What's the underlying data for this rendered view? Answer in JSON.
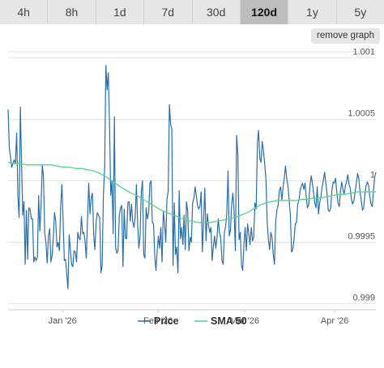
{
  "timeframes": [
    "4h",
    "8h",
    "1d",
    "7d",
    "30d",
    "120d",
    "1y",
    "5y"
  ],
  "active_timeframe": "120d",
  "remove_graph_label": "remove graph",
  "colors": {
    "price": "#2b6fa6",
    "sma": "#52d689",
    "grid": "#e5e5e5",
    "active_tab": "#bdbdbd",
    "tab": "#e6e6e6"
  },
  "chart_data": {
    "type": "line",
    "xlabel": "",
    "ylabel": "",
    "x_ticks": [
      "Jan '26",
      "Feb '26",
      "Mar '26",
      "Apr '26"
    ],
    "x_range": [
      "Dec 12",
      "Apr 10"
    ],
    "y_ticks": [
      {
        "value": 0.999,
        "label": "0.999"
      },
      {
        "value": 0.9995,
        "label": "0.9995"
      },
      {
        "value": 1.0,
        "label": "1"
      },
      {
        "value": 1.0005,
        "label": "1.0005"
      },
      {
        "value": 1.001,
        "label": "1.001"
      }
    ],
    "ylim": [
      0.99895,
      1.00105
    ],
    "grid": true,
    "legend_position": "bottom-center",
    "series": [
      {
        "name": "Price",
        "values": [
          1.00058,
          1.00027,
          1.00019,
          1.00011,
          1.00014,
          1.00017,
          1.00014,
          1.00039,
          0.99987,
          0.9997,
          1.0006,
          1.00015,
          0.99972,
          0.99983,
          0.99932,
          0.99976,
          0.99936,
          0.99978,
          0.99977,
          0.99969,
          0.99969,
          0.99934,
          0.99938,
          0.99935,
          0.99938,
          0.99988,
          0.99959,
          0.99981,
          1.00013,
          1.00003,
          0.99958,
          0.99949,
          0.99933,
          0.99955,
          0.99961,
          0.99934,
          0.99939,
          0.99954,
          0.99974,
          0.99967,
          0.99946,
          0.9995,
          0.99943,
          0.99979,
          0.99997,
          0.99968,
          0.99935,
          0.99936,
          0.99924,
          0.99912,
          0.99956,
          0.99944,
          0.99932,
          0.9993,
          0.99943,
          0.99942,
          0.99934,
          0.99958,
          0.99953,
          0.99952,
          0.99971,
          0.99957,
          0.99958,
          0.99951,
          0.99937,
          0.99968,
          0.99998,
          0.99973,
          0.99986,
          0.9999,
          0.99957,
          0.99944,
          0.99966,
          0.99974,
          0.99972,
          0.9997,
          0.99925,
          0.99931,
          0.99988,
          1.00011,
          1.00094,
          1.00074,
          1.00088,
          1.00045,
          0.99988,
          1.0,
          0.99957,
          1.00052,
          0.99946,
          0.99941,
          0.99943,
          0.99972,
          0.99978,
          0.9998,
          0.9993,
          0.99977,
          0.99953,
          0.99953,
          0.99982,
          0.99983,
          0.99967,
          0.99981,
          0.99967,
          0.99962,
          0.99971,
          0.99997,
          0.99965,
          0.99945,
          0.99955,
          0.99991,
          1.0,
          0.9994,
          0.99937,
          0.99978,
          0.99969,
          0.99974,
          0.99998,
          1.0,
          0.99966,
          0.99965,
          0.99939,
          0.99927,
          0.99943,
          0.99955,
          0.99945,
          0.99962,
          0.99934,
          0.99975,
          0.99966,
          0.9995,
          0.99985,
          0.99991,
          1.00062,
          1.00046,
          1.00042,
          0.99931,
          0.99982,
          0.9994,
          0.99946,
          0.99925,
          0.99992,
          0.99953,
          0.99962,
          0.99948,
          0.99972,
          0.99944,
          0.99983,
          0.99975,
          0.99943,
          0.99954,
          0.9995,
          0.99982,
          0.99986,
          0.99995,
          0.99988,
          0.9998,
          0.99977,
          0.99979,
          0.99991,
          0.99942,
          0.99968,
          0.99994,
          0.99951,
          0.99973,
          0.99964,
          0.99958,
          0.99962,
          0.99935,
          0.99947,
          0.99955,
          0.99945,
          0.99954,
          0.99969,
          0.99958,
          0.99954,
          0.99935,
          0.99932,
          0.99958,
          0.99963,
          0.99974,
          1.00008,
          0.99955,
          0.9996,
          0.99981,
          0.9999,
          0.99974,
          0.99943,
          1.00037,
          1.00021,
          0.99952,
          0.99958,
          0.99931,
          0.99927,
          0.99948,
          0.99962,
          0.99943,
          0.99965,
          0.99957,
          0.99948,
          0.99962,
          0.99951,
          0.99954,
          0.99982,
          0.99977,
          1.0003,
          1.00041,
          1.00018,
          1.00015,
          1.00032,
          1.00024,
          1.00014,
          1.00001,
          0.99966,
          0.99952,
          0.99944,
          0.99958,
          0.99954,
          0.9994,
          0.99932,
          0.99967,
          0.99976,
          0.9998,
          0.99992,
          0.99995,
          0.99984,
          0.99995,
          1.00002,
          1.00012,
          1.00002,
          0.99996,
          0.99985,
          0.99972,
          0.99942,
          0.99944,
          0.99952,
          0.99965,
          0.99966,
          0.99981,
          0.99984,
          0.99992,
          0.99996,
          0.99998,
          0.99993,
          0.99998,
          0.99987,
          0.99978,
          0.9998,
          0.99996,
          1.00004,
          0.99998,
          0.9999,
          0.99982,
          0.99978,
          0.99995,
          0.99973,
          0.99982,
          0.99987,
          0.99995,
          1.0,
          1.00007,
          0.99998,
          0.99989,
          0.99976,
          0.99975,
          0.99978,
          0.99992,
          0.99999,
          0.99998,
          1.00002,
          0.99991,
          0.99982,
          0.99979,
          0.99992,
          0.99999,
          0.99993,
          0.99989,
          0.99996,
          0.99999,
          1.00005,
          0.99997,
          0.99994,
          0.99985,
          0.99981,
          0.99984,
          0.99991,
          0.99998,
          1.00006,
          1.00002,
          0.99991,
          0.99984,
          0.99976,
          0.99978,
          0.99989,
          0.99996,
          0.99999,
          0.99996,
          0.99987,
          0.99981,
          0.99979,
          0.99992,
          1.00003,
          1.00007
        ]
      },
      {
        "name": "SMA 50",
        "values": [
          1.00015,
          1.00014,
          1.00014,
          1.00013,
          1.00013,
          1.00013,
          1.00013,
          1.00013,
          1.00012,
          1.00011,
          1.00011,
          1.0001,
          1.0001,
          1.00009,
          1.00008,
          1.00006,
          1.00003,
          1.0,
          0.99996,
          0.99993,
          0.9999,
          0.99988,
          0.99985,
          0.99982,
          0.99979,
          0.99976,
          0.99974,
          0.99972,
          0.9997,
          0.99968,
          0.99967,
          0.99966,
          0.99966,
          0.99966,
          0.99967,
          0.99968,
          0.99969,
          0.9997,
          0.99972,
          0.99974,
          0.99977,
          0.9998,
          0.99982,
          0.99983,
          0.99984,
          0.99984,
          0.99984,
          0.99984,
          0.99985,
          0.99985,
          0.99986,
          0.99986,
          0.99987,
          0.99988,
          0.99989,
          0.99989,
          0.9999,
          0.99991,
          0.99991,
          0.99991,
          0.99991
        ]
      }
    ]
  }
}
